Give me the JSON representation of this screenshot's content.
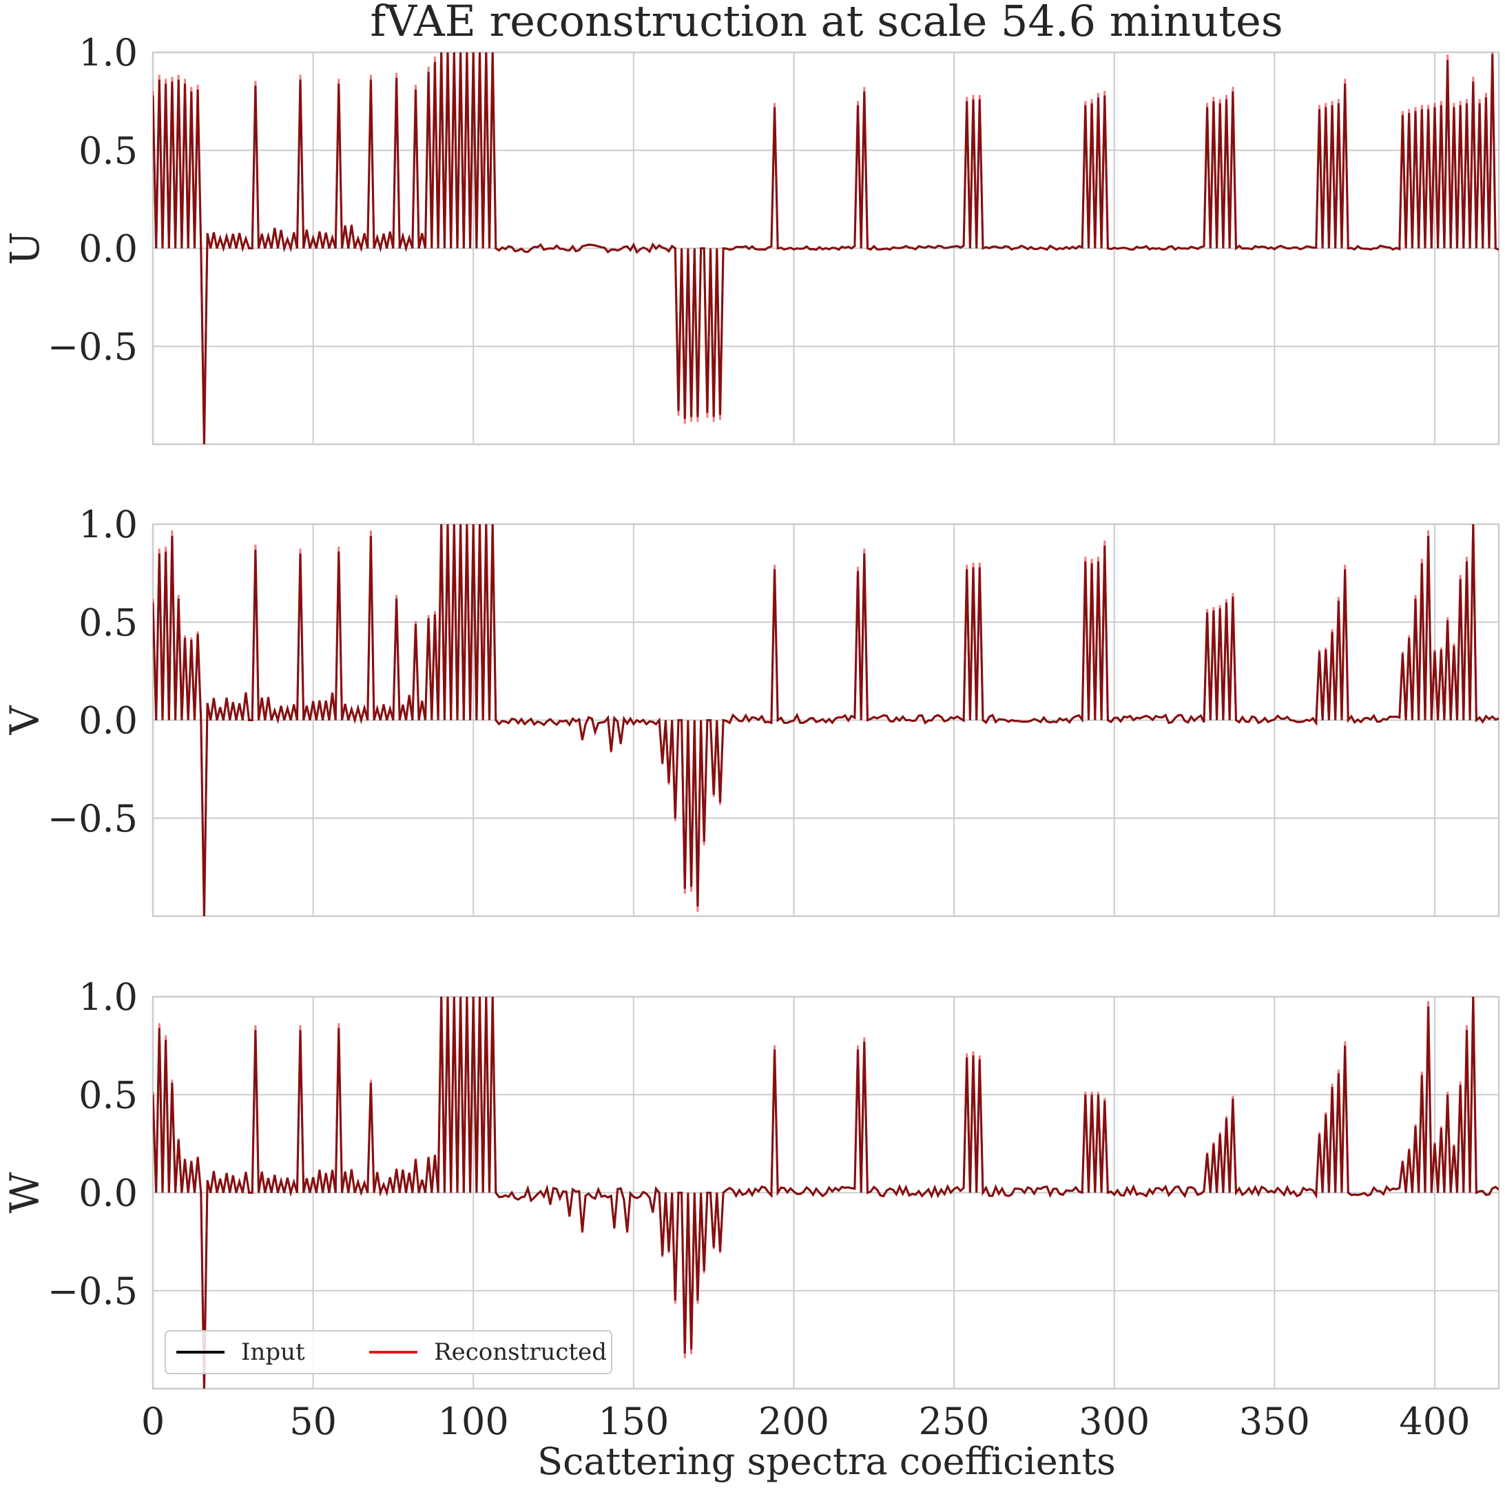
{
  "chart_data": {
    "type": "line",
    "title": "fVAE reconstruction at scale 54.6 minutes",
    "xlabel": "Scattering spectra coefficients",
    "xlim": [
      0,
      420
    ],
    "ylim": [
      -1,
      1
    ],
    "x_ticks": [
      "0",
      "50",
      "100",
      "150",
      "200",
      "250",
      "300",
      "350",
      "400"
    ],
    "y_ticks": [
      "1.0",
      "0.5",
      "0.0",
      "−0.5"
    ],
    "x_tick_values": [
      0,
      50,
      100,
      150,
      200,
      250,
      300,
      350,
      400
    ],
    "y_tick_values": [
      1.0,
      0.5,
      0.0,
      -0.5
    ],
    "legend": {
      "location": "lower-left",
      "entries": [
        {
          "label": "Input",
          "color": "#000000"
        },
        {
          "label": "Reconstructed",
          "color": "#e8141c"
        }
      ]
    },
    "series_color_overlap": "#8b1010",
    "grid": true,
    "panels": [
      {
        "ylabel": "U",
        "segments": [
          {
            "x0": 0,
            "x1": 16,
            "step": 1,
            "values": [
              0.78,
              0.0,
              0.86,
              0.0,
              0.84,
              0.0,
              0.85,
              0.0,
              0.86,
              0.0,
              0.84,
              0.0,
              0.8,
              0.0,
              0.81,
              0.0,
              -1.0
            ]
          },
          {
            "x0": 16,
            "x1": 31,
            "pattern": "osc",
            "amp": 0.09,
            "base": 0.0
          },
          {
            "x0": 31,
            "x1": 108,
            "pattern": "teeth",
            "peaks": [
              [
                32,
                0.83
              ],
              [
                46,
                0.86
              ],
              [
                58,
                0.84
              ],
              [
                68,
                0.86
              ],
              [
                76,
                0.87
              ],
              [
                82,
                0.81
              ],
              [
                86,
                0.9
              ],
              [
                88,
                0.95
              ],
              [
                90,
                1.0
              ],
              [
                92,
                1.0
              ],
              [
                94,
                1.0
              ],
              [
                96,
                1.0
              ],
              [
                98,
                1.0
              ],
              [
                100,
                1.0
              ],
              [
                102,
                1.0
              ],
              [
                104,
                1.0
              ],
              [
                106,
                1.0
              ]
            ],
            "small": 0.1
          },
          {
            "x0": 108,
            "x1": 163,
            "pattern": "noise",
            "amp": 0.02
          },
          {
            "x0": 163,
            "x1": 179,
            "pattern": "neg-teeth",
            "depth": [
              -0.83,
              -0.87,
              -0.86,
              -0.86,
              -0.84,
              -0.86,
              -0.85,
              -0.84
            ]
          },
          {
            "x0": 179,
            "x1": 420,
            "pattern": "clusters",
            "clusters": [
              [
                194,
                [
                  0.72
                ]
              ],
              [
                220,
                [
                  0.73,
                  0.8
                ]
              ],
              [
                254,
                [
                  0.75,
                  0.76,
                  0.76
                ]
              ],
              [
                291,
                [
                  0.73,
                  0.74,
                  0.77,
                  0.78
                ]
              ],
              [
                329,
                [
                  0.72,
                  0.75,
                  0.74,
                  0.76,
                  0.8
                ]
              ],
              [
                364,
                [
                  0.71,
                  0.72,
                  0.73,
                  0.74,
                  0.84
                ]
              ],
              [
                390,
                [
                  0.68,
                  0.69,
                  0.7,
                  0.71,
                  0.71,
                  0.72,
                  0.73,
                  0.96,
                  0.72,
                  0.73,
                  0.74,
                  0.85,
                  0.74,
                  0.77,
                  0.99
                ]
              ]
            ],
            "noise_amp": 0.02
          }
        ]
      },
      {
        "ylabel": "V",
        "segments": [
          {
            "x0": 0,
            "x1": 16,
            "step": 1,
            "values": [
              0.6,
              0.0,
              0.85,
              0.0,
              0.86,
              0.0,
              0.94,
              0.0,
              0.62,
              0.0,
              0.42,
              0.0,
              0.41,
              0.0,
              0.44,
              0.0,
              -1.0
            ]
          },
          {
            "x0": 16,
            "x1": 31,
            "pattern": "osc",
            "amp": 0.12,
            "base": 0.0
          },
          {
            "x0": 31,
            "x1": 108,
            "pattern": "teeth",
            "peaks": [
              [
                32,
                0.87
              ],
              [
                46,
                0.85
              ],
              [
                58,
                0.86
              ],
              [
                68,
                0.94
              ],
              [
                76,
                0.62
              ],
              [
                82,
                0.49
              ],
              [
                86,
                0.52
              ],
              [
                88,
                0.54
              ],
              [
                90,
                1.0
              ],
              [
                92,
                1.0
              ],
              [
                94,
                1.0
              ],
              [
                96,
                1.0
              ],
              [
                98,
                1.0
              ],
              [
                100,
                1.0
              ],
              [
                102,
                1.0
              ],
              [
                104,
                1.0
              ],
              [
                106,
                1.0
              ]
            ],
            "small": 0.12
          },
          {
            "x0": 108,
            "x1": 158,
            "pattern": "dips",
            "dips": [
              [
                134,
                -0.1
              ],
              [
                138,
                -0.06
              ],
              [
                143,
                -0.16
              ],
              [
                146,
                -0.12
              ],
              [
                150,
                -0.02
              ]
            ],
            "noise_amp": 0.02
          },
          {
            "x0": 158,
            "x1": 179,
            "pattern": "neg-teeth",
            "depth": [
              -0.22,
              -0.32,
              -0.5,
              -0.86,
              -0.85,
              -0.95,
              -0.62,
              -0.38,
              -0.42,
              -0.41
            ]
          },
          {
            "x0": 179,
            "x1": 420,
            "pattern": "clusters",
            "clusters": [
              [
                194,
                [
                  0.77
                ]
              ],
              [
                220,
                [
                  0.76,
                  0.85
                ]
              ],
              [
                254,
                [
                  0.77,
                  0.78,
                  0.78
                ]
              ],
              [
                291,
                [
                  0.81,
                  0.8,
                  0.81,
                  0.89
                ]
              ],
              [
                329,
                [
                  0.55,
                  0.56,
                  0.57,
                  0.6,
                  0.63
                ]
              ],
              [
                364,
                [
                  0.35,
                  0.36,
                  0.45,
                  0.61,
                  0.77
                ]
              ],
              [
                390,
                [
                  0.34,
                  0.42,
                  0.62,
                  0.8,
                  0.94,
                  0.35,
                  0.36,
                  0.51,
                  0.38,
                  0.72,
                  0.81,
                  1.0
                ]
              ]
            ],
            "noise_amp": 0.04
          }
        ]
      },
      {
        "ylabel": "W",
        "segments": [
          {
            "x0": 0,
            "x1": 16,
            "step": 1,
            "values": [
              0.5,
              0.0,
              0.84,
              0.0,
              0.78,
              0.0,
              0.56,
              0.0,
              0.27,
              0.0,
              0.17,
              0.0,
              0.16,
              0.0,
              0.18,
              0.0,
              -1.0
            ]
          },
          {
            "x0": 16,
            "x1": 31,
            "pattern": "osc",
            "amp": 0.1,
            "base": 0.0
          },
          {
            "x0": 31,
            "x1": 108,
            "pattern": "teeth",
            "peaks": [
              [
                32,
                0.83
              ],
              [
                46,
                0.83
              ],
              [
                58,
                0.84
              ],
              [
                68,
                0.56
              ],
              [
                76,
                0.12
              ],
              [
                82,
                0.17
              ],
              [
                86,
                0.18
              ],
              [
                88,
                0.19
              ],
              [
                90,
                1.0
              ],
              [
                92,
                1.0
              ],
              [
                94,
                1.0
              ],
              [
                96,
                1.0
              ],
              [
                98,
                1.0
              ],
              [
                100,
                1.0
              ],
              [
                102,
                1.0
              ],
              [
                104,
                1.0
              ],
              [
                106,
                1.0
              ]
            ],
            "small": 0.1
          },
          {
            "x0": 108,
            "x1": 158,
            "pattern": "dips",
            "dips": [
              [
                118,
                -0.04
              ],
              [
                124,
                -0.06
              ],
              [
                130,
                -0.12
              ],
              [
                134,
                -0.2
              ],
              [
                140,
                -0.02
              ],
              [
                144,
                -0.18
              ],
              [
                148,
                -0.2
              ],
              [
                152,
                -0.02
              ],
              [
                156,
                -0.1
              ]
            ],
            "noise_amp": 0.03
          },
          {
            "x0": 158,
            "x1": 179,
            "pattern": "neg-teeth",
            "depth": [
              -0.32,
              -0.3,
              -0.55,
              -0.82,
              -0.8,
              -0.55,
              -0.4,
              -0.28,
              -0.3,
              -0.15
            ]
          },
          {
            "x0": 179,
            "x1": 420,
            "pattern": "clusters",
            "clusters": [
              [
                194,
                [
                  0.73
                ]
              ],
              [
                220,
                [
                  0.73,
                  0.77
                ]
              ],
              [
                254,
                [
                  0.69,
                  0.7,
                  0.68
                ]
              ],
              [
                291,
                [
                  0.5,
                  0.5,
                  0.5,
                  0.47
                ]
              ],
              [
                329,
                [
                  0.2,
                  0.25,
                  0.3,
                  0.38,
                  0.48
                ]
              ],
              [
                364,
                [
                  0.3,
                  0.4,
                  0.54,
                  0.61,
                  0.75
                ]
              ],
              [
                390,
                [
                  0.16,
                  0.22,
                  0.34,
                  0.6,
                  0.95,
                  0.25,
                  0.33,
                  0.5,
                  0.24,
                  0.55,
                  0.83,
                  1.0
                ]
              ]
            ],
            "noise_amp": 0.05
          }
        ]
      }
    ]
  }
}
